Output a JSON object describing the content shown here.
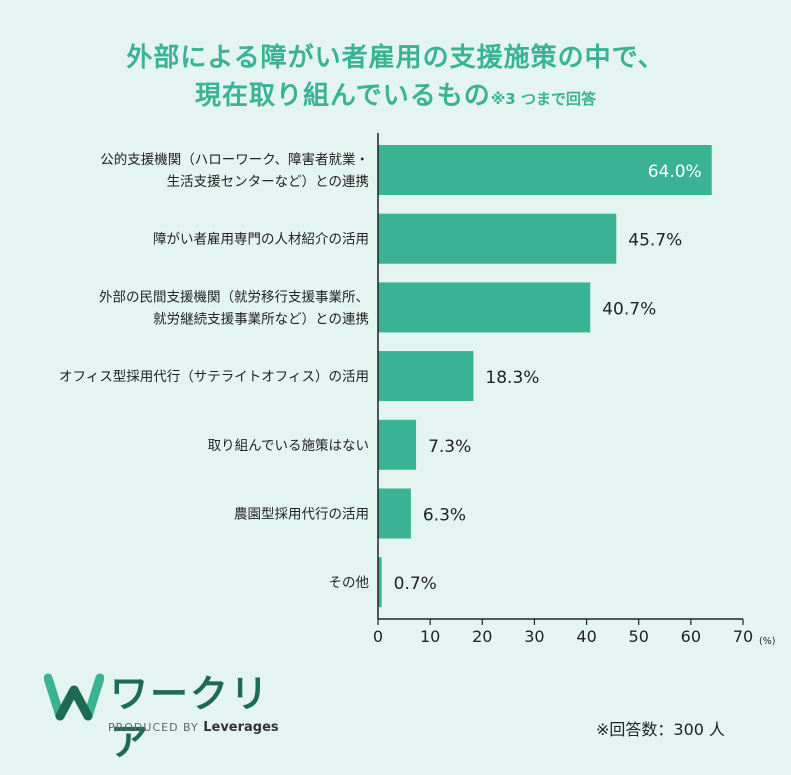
{
  "title_line1": "外部による障がい者雇用の支援施策の中で、",
  "title_line2": "現在取り組んでいるもの",
  "title_note": "※3 つまで回答",
  "chart_data": {
    "type": "bar",
    "orientation": "horizontal",
    "categories": [
      [
        "公的支援機関（ハローワーク、障害者就業・",
        "生活支援センターなど）との連携"
      ],
      [
        "障がい者雇用専門の人材紹介の活用"
      ],
      [
        "外部の民間支援機関（就労移行支援事業所、",
        "就労継続支援事業所など）との連携"
      ],
      [
        "オフィス型採用代行（サテライトオフィス）の活用"
      ],
      [
        "取り組んでいる施策はない"
      ],
      [
        "農園型採用代行の活用"
      ],
      [
        "その他"
      ]
    ],
    "values": [
      64.0,
      45.7,
      40.7,
      18.3,
      7.3,
      6.3,
      0.7
    ],
    "value_labels": [
      "64.0%",
      "45.7%",
      "40.7%",
      "18.3%",
      "7.3%",
      "6.3%",
      "0.7%"
    ],
    "xlim": [
      0,
      70
    ],
    "xticks": [
      "0",
      "10",
      "20",
      "30",
      "40",
      "50",
      "60",
      "70"
    ],
    "xunit": "(%)",
    "bar_color": "#3ab294",
    "grid": false
  },
  "footnote": "※回答数：300 人",
  "brand": {
    "name": "ワークリア",
    "produced_by": "PRODUCED BY",
    "company": "Leverages",
    "color": "#1e6a54"
  }
}
